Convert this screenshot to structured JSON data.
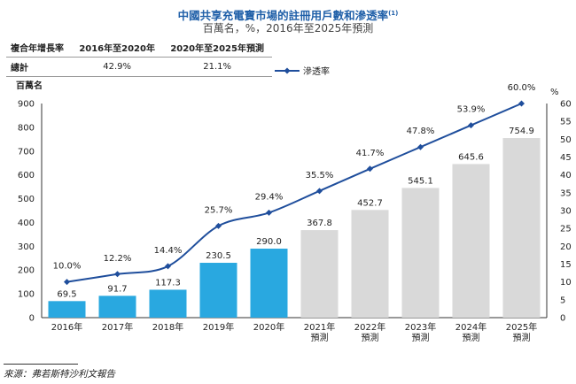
{
  "title": "中國共享充電寶市場的註冊用戶數和滲透率",
  "title_note": "(1)",
  "subtitle": "百萬名，%，2016年至2025年預測",
  "cagr_table": {
    "header": [
      "複合年增長率",
      "2016年至2020年",
      "2020年至2025年預測"
    ],
    "row_label": "總計",
    "values": [
      "42.9%",
      "21.1%"
    ]
  },
  "source": "來源：弗若斯特沙利文報告",
  "chart_data": {
    "type": "bar",
    "title": "中國共享充電寶市場的註冊用戶數和滲透率",
    "categories": [
      "2016年",
      "2017年",
      "2018年",
      "2019年",
      "2020年",
      "2021年\n預測",
      "2022年\n預測",
      "2023年\n預測",
      "2024年\n預測",
      "2025年\n預測"
    ],
    "ylabel": "百萬名",
    "y2label": "%",
    "ylim": [
      0,
      900
    ],
    "y2lim": [
      0,
      60
    ],
    "yticks": [
      0,
      100,
      200,
      300,
      400,
      500,
      600,
      700,
      800,
      900
    ],
    "y2ticks": [
      0,
      5,
      10,
      15,
      20,
      25,
      30,
      35,
      40,
      45,
      50,
      55,
      60
    ],
    "bars": {
      "values": [
        69.5,
        91.7,
        117.3,
        230.5,
        290.0,
        367.8,
        452.7,
        545.1,
        645.6,
        754.9
      ],
      "labels": [
        "69.5",
        "91.7",
        "117.3",
        "230.5",
        "290.0",
        "367.8",
        "452.7",
        "545.1",
        "645.6",
        "754.9"
      ],
      "actual_color": "#29a8e0",
      "forecast_color": "#d9d9d9",
      "forecast_from_index": 5
    },
    "line": {
      "name": "滲透率",
      "values": [
        10.0,
        12.2,
        14.4,
        25.7,
        29.4,
        35.5,
        41.7,
        47.8,
        53.9,
        60.0
      ],
      "labels": [
        "10.0%",
        "12.2%",
        "14.4%",
        "25.7%",
        "29.4%",
        "35.5%",
        "41.7%",
        "47.8%",
        "53.9%",
        "60.0%"
      ],
      "color": "#1f4e9c"
    },
    "legend_placement": "top-center"
  }
}
